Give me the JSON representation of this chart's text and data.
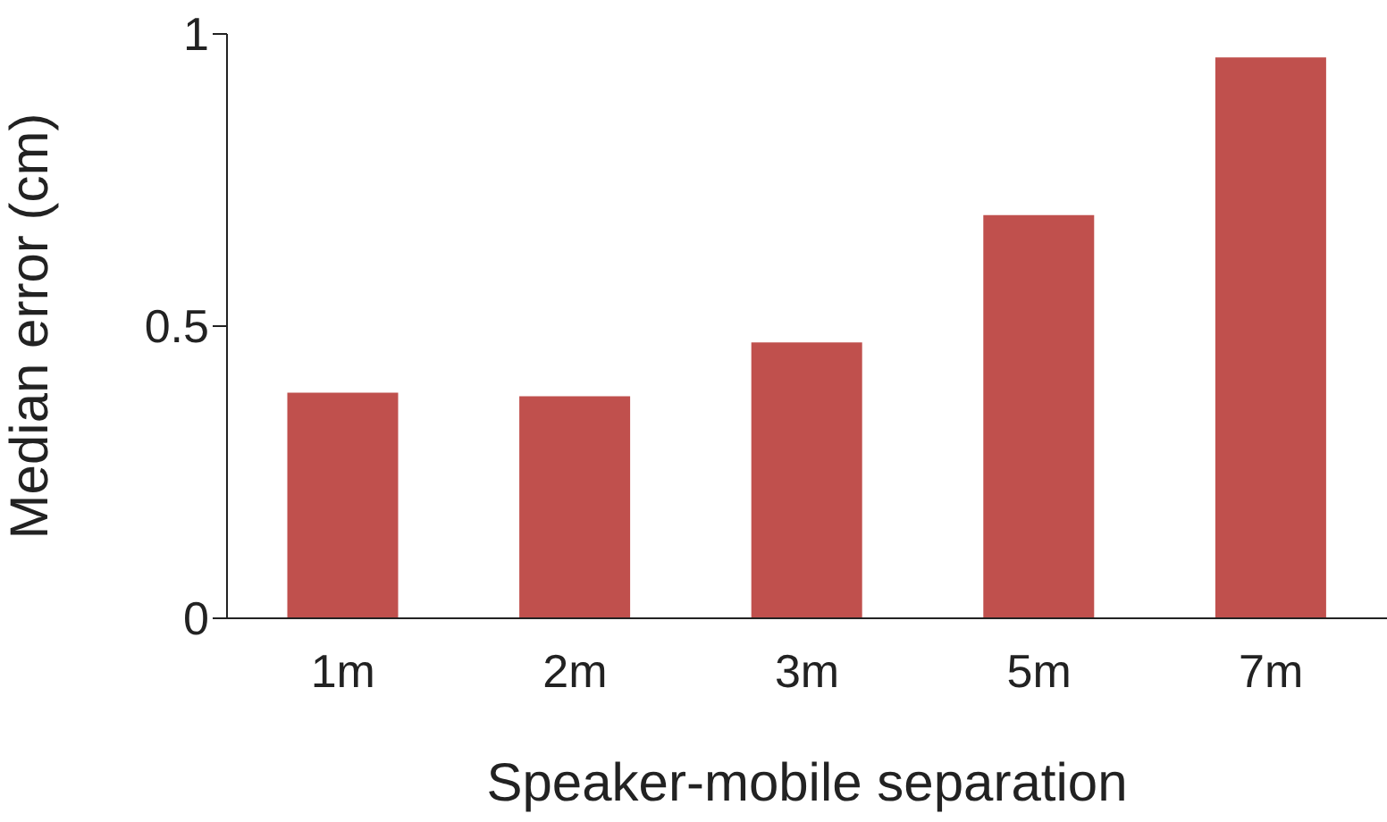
{
  "chart_data": {
    "type": "bar",
    "xlabel": "Speaker-mobile separation",
    "ylabel": "Median error (cm)",
    "categories": [
      "1m",
      "2m",
      "3m",
      "5m",
      "7m"
    ],
    "values": [
      0.386,
      0.38,
      0.472,
      0.69,
      0.96
    ],
    "color": "#c0504d",
    "ylim": [
      0,
      1
    ],
    "yticks": [
      0,
      0.5,
      1
    ],
    "grid": false,
    "legend": false
  }
}
